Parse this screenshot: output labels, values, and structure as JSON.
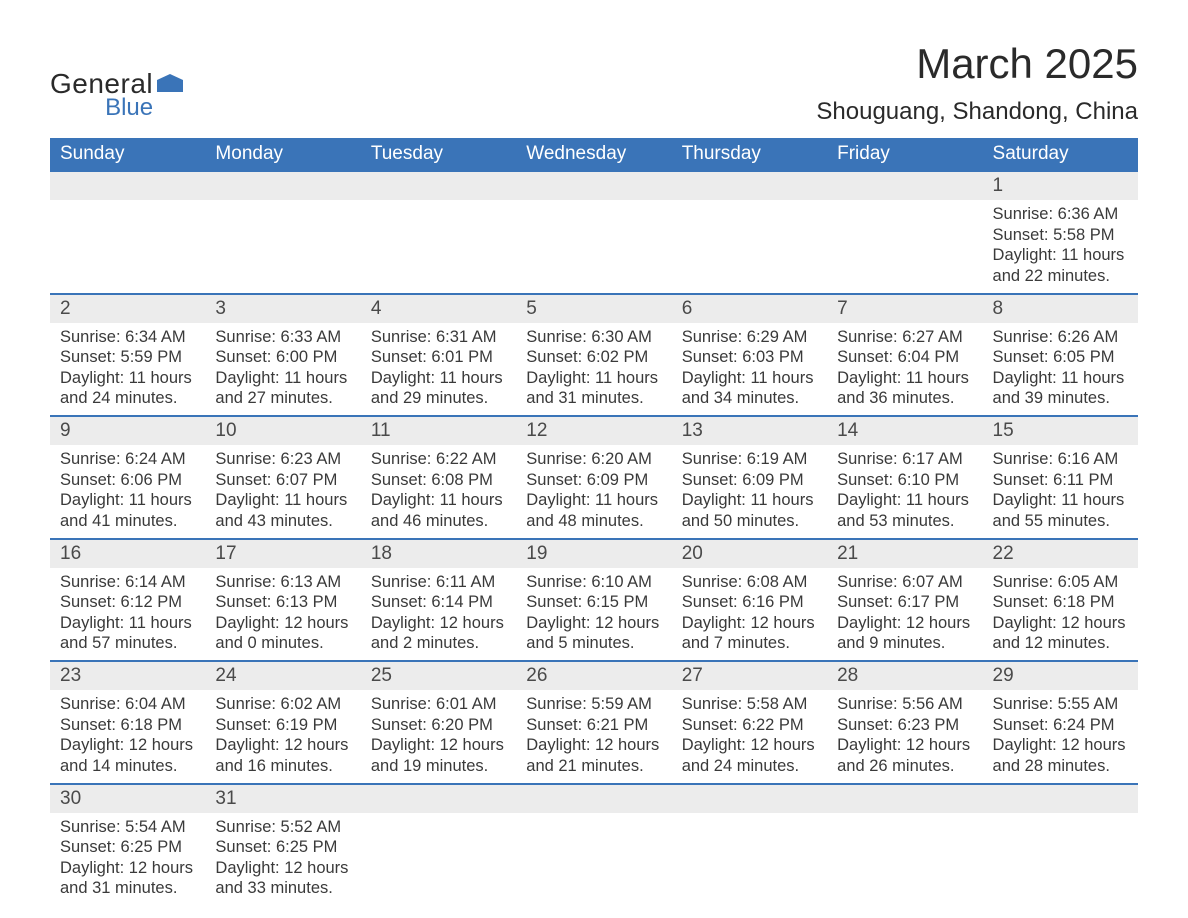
{
  "logo": {
    "general": "General",
    "blue": "Blue",
    "flag_color": "#3a74b8"
  },
  "header": {
    "month_title": "March 2025",
    "location": "Shouguang, Shandong, China"
  },
  "colors": {
    "header_bg": "#3a74b8",
    "header_text": "#ffffff",
    "daynum_bg": "#ececec",
    "row_divider": "#3a74b8",
    "text": "#3a3a3a"
  },
  "daynames": [
    "Sunday",
    "Monday",
    "Tuesday",
    "Wednesday",
    "Thursday",
    "Friday",
    "Saturday"
  ],
  "weeks": [
    [
      null,
      null,
      null,
      null,
      null,
      null,
      {
        "n": "1",
        "sunrise": "Sunrise: 6:36 AM",
        "sunset": "Sunset: 5:58 PM",
        "dl1": "Daylight: 11 hours",
        "dl2": "and 22 minutes."
      }
    ],
    [
      {
        "n": "2",
        "sunrise": "Sunrise: 6:34 AM",
        "sunset": "Sunset: 5:59 PM",
        "dl1": "Daylight: 11 hours",
        "dl2": "and 24 minutes."
      },
      {
        "n": "3",
        "sunrise": "Sunrise: 6:33 AM",
        "sunset": "Sunset: 6:00 PM",
        "dl1": "Daylight: 11 hours",
        "dl2": "and 27 minutes."
      },
      {
        "n": "4",
        "sunrise": "Sunrise: 6:31 AM",
        "sunset": "Sunset: 6:01 PM",
        "dl1": "Daylight: 11 hours",
        "dl2": "and 29 minutes."
      },
      {
        "n": "5",
        "sunrise": "Sunrise: 6:30 AM",
        "sunset": "Sunset: 6:02 PM",
        "dl1": "Daylight: 11 hours",
        "dl2": "and 31 minutes."
      },
      {
        "n": "6",
        "sunrise": "Sunrise: 6:29 AM",
        "sunset": "Sunset: 6:03 PM",
        "dl1": "Daylight: 11 hours",
        "dl2": "and 34 minutes."
      },
      {
        "n": "7",
        "sunrise": "Sunrise: 6:27 AM",
        "sunset": "Sunset: 6:04 PM",
        "dl1": "Daylight: 11 hours",
        "dl2": "and 36 minutes."
      },
      {
        "n": "8",
        "sunrise": "Sunrise: 6:26 AM",
        "sunset": "Sunset: 6:05 PM",
        "dl1": "Daylight: 11 hours",
        "dl2": "and 39 minutes."
      }
    ],
    [
      {
        "n": "9",
        "sunrise": "Sunrise: 6:24 AM",
        "sunset": "Sunset: 6:06 PM",
        "dl1": "Daylight: 11 hours",
        "dl2": "and 41 minutes."
      },
      {
        "n": "10",
        "sunrise": "Sunrise: 6:23 AM",
        "sunset": "Sunset: 6:07 PM",
        "dl1": "Daylight: 11 hours",
        "dl2": "and 43 minutes."
      },
      {
        "n": "11",
        "sunrise": "Sunrise: 6:22 AM",
        "sunset": "Sunset: 6:08 PM",
        "dl1": "Daylight: 11 hours",
        "dl2": "and 46 minutes."
      },
      {
        "n": "12",
        "sunrise": "Sunrise: 6:20 AM",
        "sunset": "Sunset: 6:09 PM",
        "dl1": "Daylight: 11 hours",
        "dl2": "and 48 minutes."
      },
      {
        "n": "13",
        "sunrise": "Sunrise: 6:19 AM",
        "sunset": "Sunset: 6:09 PM",
        "dl1": "Daylight: 11 hours",
        "dl2": "and 50 minutes."
      },
      {
        "n": "14",
        "sunrise": "Sunrise: 6:17 AM",
        "sunset": "Sunset: 6:10 PM",
        "dl1": "Daylight: 11 hours",
        "dl2": "and 53 minutes."
      },
      {
        "n": "15",
        "sunrise": "Sunrise: 6:16 AM",
        "sunset": "Sunset: 6:11 PM",
        "dl1": "Daylight: 11 hours",
        "dl2": "and 55 minutes."
      }
    ],
    [
      {
        "n": "16",
        "sunrise": "Sunrise: 6:14 AM",
        "sunset": "Sunset: 6:12 PM",
        "dl1": "Daylight: 11 hours",
        "dl2": "and 57 minutes."
      },
      {
        "n": "17",
        "sunrise": "Sunrise: 6:13 AM",
        "sunset": "Sunset: 6:13 PM",
        "dl1": "Daylight: 12 hours",
        "dl2": "and 0 minutes."
      },
      {
        "n": "18",
        "sunrise": "Sunrise: 6:11 AM",
        "sunset": "Sunset: 6:14 PM",
        "dl1": "Daylight: 12 hours",
        "dl2": "and 2 minutes."
      },
      {
        "n": "19",
        "sunrise": "Sunrise: 6:10 AM",
        "sunset": "Sunset: 6:15 PM",
        "dl1": "Daylight: 12 hours",
        "dl2": "and 5 minutes."
      },
      {
        "n": "20",
        "sunrise": "Sunrise: 6:08 AM",
        "sunset": "Sunset: 6:16 PM",
        "dl1": "Daylight: 12 hours",
        "dl2": "and 7 minutes."
      },
      {
        "n": "21",
        "sunrise": "Sunrise: 6:07 AM",
        "sunset": "Sunset: 6:17 PM",
        "dl1": "Daylight: 12 hours",
        "dl2": "and 9 minutes."
      },
      {
        "n": "22",
        "sunrise": "Sunrise: 6:05 AM",
        "sunset": "Sunset: 6:18 PM",
        "dl1": "Daylight: 12 hours",
        "dl2": "and 12 minutes."
      }
    ],
    [
      {
        "n": "23",
        "sunrise": "Sunrise: 6:04 AM",
        "sunset": "Sunset: 6:18 PM",
        "dl1": "Daylight: 12 hours",
        "dl2": "and 14 minutes."
      },
      {
        "n": "24",
        "sunrise": "Sunrise: 6:02 AM",
        "sunset": "Sunset: 6:19 PM",
        "dl1": "Daylight: 12 hours",
        "dl2": "and 16 minutes."
      },
      {
        "n": "25",
        "sunrise": "Sunrise: 6:01 AM",
        "sunset": "Sunset: 6:20 PM",
        "dl1": "Daylight: 12 hours",
        "dl2": "and 19 minutes."
      },
      {
        "n": "26",
        "sunrise": "Sunrise: 5:59 AM",
        "sunset": "Sunset: 6:21 PM",
        "dl1": "Daylight: 12 hours",
        "dl2": "and 21 minutes."
      },
      {
        "n": "27",
        "sunrise": "Sunrise: 5:58 AM",
        "sunset": "Sunset: 6:22 PM",
        "dl1": "Daylight: 12 hours",
        "dl2": "and 24 minutes."
      },
      {
        "n": "28",
        "sunrise": "Sunrise: 5:56 AM",
        "sunset": "Sunset: 6:23 PM",
        "dl1": "Daylight: 12 hours",
        "dl2": "and 26 minutes."
      },
      {
        "n": "29",
        "sunrise": "Sunrise: 5:55 AM",
        "sunset": "Sunset: 6:24 PM",
        "dl1": "Daylight: 12 hours",
        "dl2": "and 28 minutes."
      }
    ],
    [
      {
        "n": "30",
        "sunrise": "Sunrise: 5:54 AM",
        "sunset": "Sunset: 6:25 PM",
        "dl1": "Daylight: 12 hours",
        "dl2": "and 31 minutes."
      },
      {
        "n": "31",
        "sunrise": "Sunrise: 5:52 AM",
        "sunset": "Sunset: 6:25 PM",
        "dl1": "Daylight: 12 hours",
        "dl2": "and 33 minutes."
      },
      null,
      null,
      null,
      null,
      null
    ]
  ]
}
